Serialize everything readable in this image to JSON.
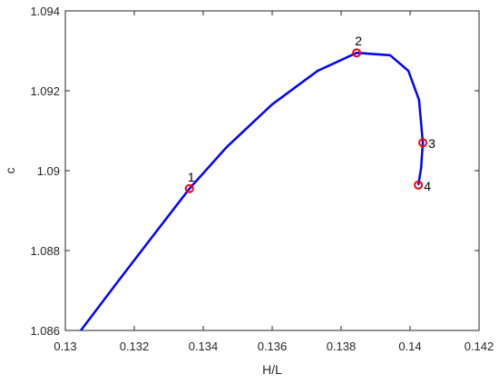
{
  "chart_data": {
    "type": "line",
    "xlabel": "H/L",
    "ylabel": "c",
    "xlim": [
      0.13,
      0.142
    ],
    "xticks": [
      0.13,
      0.132,
      0.134,
      0.136,
      0.138,
      0.14,
      0.142
    ],
    "ylim": [
      1.086,
      1.094
    ],
    "yticks": [
      1.086,
      1.088,
      1.09,
      1.092,
      1.094
    ],
    "series": [
      {
        "type": "line",
        "color": "#0000ff",
        "x": [
          0.13045,
          0.13153,
          0.13258,
          0.1336,
          0.13468,
          0.136,
          0.13732,
          0.13845,
          0.13942,
          0.13995,
          0.14026,
          0.14037,
          0.14032,
          0.14024
        ],
        "values": [
          1.086,
          1.08723,
          1.08841,
          1.08955,
          1.09059,
          1.09166,
          1.0925,
          1.09295,
          1.09289,
          1.0925,
          1.09177,
          1.0907,
          1.09007,
          1.08964
        ]
      },
      {
        "type": "scatter",
        "color": "#ff0000",
        "x": [
          0.1336,
          0.13845,
          0.14037,
          0.14024
        ],
        "values": [
          1.08955,
          1.09295,
          1.0907,
          1.08964
        ],
        "labels": [
          "1",
          "2",
          "3",
          "4"
        ]
      }
    ]
  }
}
